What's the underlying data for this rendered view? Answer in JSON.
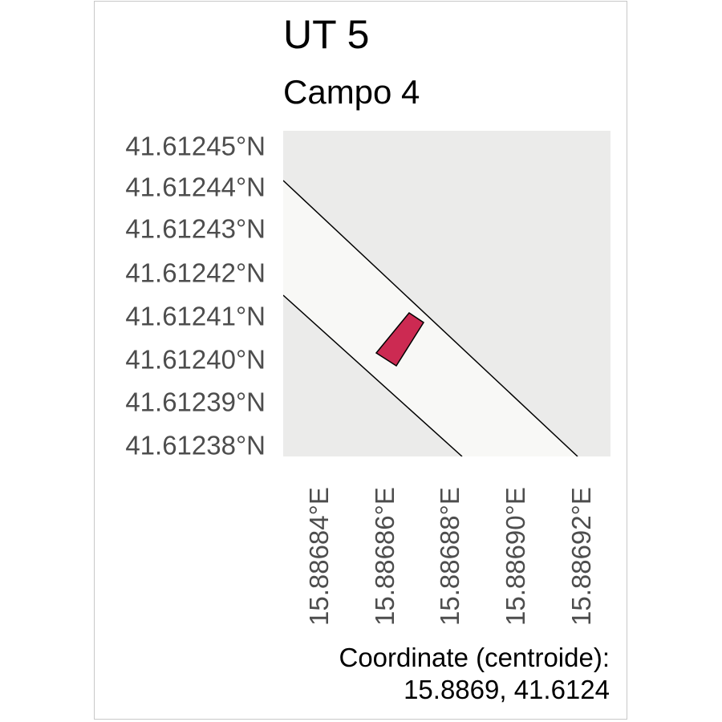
{
  "title": "UT 5",
  "subtitle": "Campo 4",
  "y_ticks": [
    "41.61245°N",
    "41.61244°N",
    "41.61243°N",
    "41.61242°N",
    "41.61241°N",
    "41.61240°N",
    "41.61239°N",
    "41.61238°N"
  ],
  "x_ticks": [
    "15.88684°E",
    "15.88686°E",
    "15.88688°E",
    "15.88690°E",
    "15.88692°E"
  ],
  "caption": {
    "label": "Coordinate (centroide):",
    "value": "15.8869, 41.6124"
  },
  "colors": {
    "background": "#ebebea",
    "road": "#f8f8f6",
    "feature": "#cc2a52",
    "outline": "#000000"
  }
}
